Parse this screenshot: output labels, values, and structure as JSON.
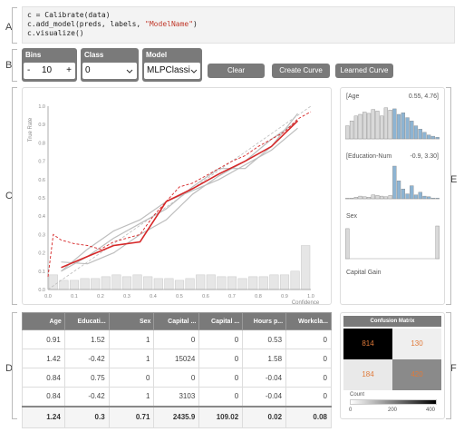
{
  "section_letters": {
    "a": "A",
    "b": "B",
    "c": "C",
    "d": "D",
    "e": "E",
    "f": "F"
  },
  "code": {
    "line1": "c = Calibrate(data)",
    "line2_pre": "c.add_model(preds, labels, ",
    "line2_str": "\"ModelName\"",
    "line2_post": ")",
    "line3": "c.visualize()"
  },
  "controls": {
    "bins": {
      "label": "Bins",
      "value": "10",
      "minus": "-",
      "plus": "+"
    },
    "class": {
      "label": "Class",
      "value": "0"
    },
    "model": {
      "label": "Model",
      "value": "MLPClassi"
    }
  },
  "buttons": {
    "clear": "Clear",
    "create_curve": "Create Curve",
    "learned_curve": "Learned Curve"
  },
  "colors": {
    "accent_red": "#d62728",
    "bar_blue": "#8db4d3",
    "header_gray": "#7a7a7a"
  },
  "chart_data": {
    "type": "line",
    "xlabel": "Confidence",
    "ylabel": "True Rate",
    "xlim": [
      0,
      1
    ],
    "ylim": [
      0,
      1
    ],
    "xticks": [
      "0.0",
      "0.1",
      "0.2",
      "0.3",
      "0.4",
      "0.5",
      "0.6",
      "0.7",
      "0.8",
      "0.9",
      "1.0"
    ],
    "yticks": [
      "0.0",
      "0.1",
      "0.2",
      "0.3",
      "0.4",
      "0.5",
      "0.6",
      "0.7",
      "0.8",
      "0.9",
      "1.0"
    ],
    "grid": false,
    "series": [
      {
        "x": [
          0.05,
          0.15,
          0.25,
          0.35,
          0.45,
          0.55,
          0.65,
          0.75,
          0.85,
          0.95
        ],
        "y": [
          0.12,
          0.18,
          0.24,
          0.26,
          0.48,
          0.55,
          0.63,
          0.7,
          0.78,
          0.92
        ]
      },
      {
        "x": [
          0.0,
          0.02,
          0.05,
          0.1,
          0.15,
          0.2,
          0.25,
          0.3,
          0.35,
          0.4,
          0.45,
          0.5,
          0.55,
          0.6,
          0.65,
          0.7,
          0.75,
          0.8,
          0.85,
          0.9,
          0.95,
          1.0
        ],
        "y": [
          0.07,
          0.3,
          0.27,
          0.25,
          0.24,
          0.22,
          0.26,
          0.28,
          0.3,
          0.4,
          0.48,
          0.56,
          0.58,
          0.62,
          0.66,
          0.7,
          0.73,
          0.78,
          0.82,
          0.86,
          0.93,
          0.97
        ]
      },
      {
        "x": [
          0.05,
          0.15,
          0.25,
          0.35,
          0.45,
          0.55,
          0.65,
          0.75,
          0.85,
          0.95
        ],
        "y": [
          0.1,
          0.22,
          0.32,
          0.38,
          0.48,
          0.54,
          0.6,
          0.68,
          0.76,
          0.88
        ]
      },
      {
        "x": [
          0.05,
          0.15,
          0.25,
          0.35,
          0.45,
          0.55,
          0.65,
          0.75,
          0.85,
          0.95
        ],
        "y": [
          0.15,
          0.14,
          0.2,
          0.3,
          0.38,
          0.52,
          0.62,
          0.7,
          0.82,
          0.92
        ]
      },
      {
        "x": [
          0.05,
          0.15,
          0.25,
          0.35,
          0.45,
          0.55,
          0.65,
          0.75,
          0.85,
          0.95
        ],
        "y": [
          0.1,
          0.18,
          0.28,
          0.36,
          0.44,
          0.56,
          0.66,
          0.66,
          0.78,
          0.96
        ]
      }
    ],
    "histogram": [
      0.08,
      0.05,
      0.05,
      0.06,
      0.06,
      0.07,
      0.08,
      0.07,
      0.08,
      0.07,
      0.06,
      0.06,
      0.05,
      0.06,
      0.08,
      0.08,
      0.07,
      0.07,
      0.06,
      0.07,
      0.07,
      0.08,
      0.08,
      0.1,
      0.24
    ]
  },
  "features": [
    {
      "name": "[Age",
      "range": "0.55, 4.76]",
      "bars": [
        0.4,
        0.55,
        0.7,
        0.75,
        0.82,
        0.78,
        0.9,
        0.85,
        0.7,
        0.95,
        0.88,
        0.92,
        0.75,
        0.8,
        0.65,
        0.55,
        0.4,
        0.3,
        0.2,
        0.12,
        0.08,
        0.05
      ],
      "blue_from": 11
    },
    {
      "name": "[Education-Num",
      "range": "-0.9, 3.30]",
      "bars": [
        0.02,
        0.02,
        0.05,
        0.08,
        0.06,
        0.05,
        0.12,
        0.1,
        0.08,
        0.06,
        0.1,
        1.0,
        0.55,
        0.3,
        0.15,
        0.4,
        0.12,
        0.2,
        0.08,
        0.06,
        0.02,
        0.02
      ],
      "blue_from": 11
    },
    {
      "name": "Sex",
      "range": "",
      "bars": [
        0.92,
        0,
        0,
        0,
        0,
        0,
        0,
        0,
        0,
        0,
        0,
        0,
        0,
        0,
        0,
        0,
        0,
        0,
        0,
        0,
        0,
        1.0
      ],
      "blue_from": 99
    },
    {
      "name": "Capital Gain",
      "range": "",
      "bars": [],
      "blue_from": 99
    }
  ],
  "table": {
    "headers": [
      "Age",
      "Educati...",
      "Sex",
      "Capital ...",
      "Capital ...",
      "Hours p...",
      "Workcla..."
    ],
    "rows": [
      [
        "0.91",
        "1.52",
        "1",
        "0",
        "0",
        "0.53",
        "0"
      ],
      [
        "1.42",
        "-0.42",
        "1",
        "15024",
        "0",
        "1.58",
        "0"
      ],
      [
        "0.84",
        "0.75",
        "0",
        "0",
        "0",
        "-0.04",
        "0"
      ],
      [
        "0.84",
        "-0.42",
        "1",
        "3103",
        "0",
        "-0.04",
        "0"
      ]
    ],
    "summary": [
      "1.24",
      "0.3",
      "0.71",
      "2435.9",
      "109.02",
      "0.02",
      "0.08"
    ]
  },
  "confusion_matrix": {
    "title": "Confusion Matrix",
    "cells": [
      "814",
      "130",
      "184",
      "420"
    ],
    "legend_label": "Count",
    "ticks": [
      "0",
      "200",
      "400"
    ]
  }
}
